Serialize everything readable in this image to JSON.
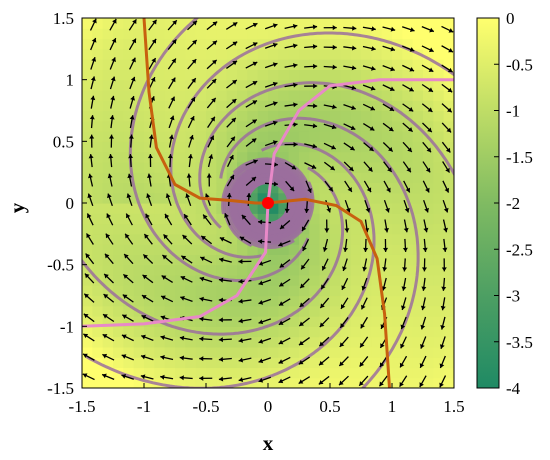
{
  "chart_data": {
    "type": "streamplot",
    "xlabel": "x",
    "ylabel": "y",
    "xlim": [
      -1.5,
      1.5
    ],
    "ylim": [
      -1.5,
      1.5
    ],
    "xticks": [
      -1.5,
      -1,
      -0.5,
      0,
      0.5,
      1,
      1.5
    ],
    "xtick_labels": [
      "-1.5",
      "-1",
      "-0.5",
      "0",
      "0.5",
      "1",
      "1.5"
    ],
    "yticks": [
      -1.5,
      -1,
      -0.5,
      0,
      0.5,
      1,
      1.5
    ],
    "ytick_labels": [
      "-1.5",
      "-1",
      "-0.5",
      "0",
      "0.5",
      "1",
      "1.5"
    ],
    "colorbar": {
      "range": [
        -4,
        0
      ],
      "ticks": [
        0,
        -0.5,
        -1,
        -1.5,
        -2,
        -2.5,
        -3,
        -3.5,
        -4
      ],
      "tick_labels": [
        "0",
        "-0.5",
        "-1",
        "-1.5",
        "-2",
        "-2.5",
        "-3",
        "-3.5",
        "-4"
      ],
      "colormap": "summer-like",
      "low_color": "#1f8a64",
      "high_color": "#ffff6e"
    },
    "equilibrium": {
      "x": 0,
      "y": 0,
      "color": "#ff0000"
    },
    "nullcline_orange": {
      "color": "#c8600f",
      "points": [
        [
          -1.0,
          1.5
        ],
        [
          -0.96,
          0.9
        ],
        [
          -0.9,
          0.45
        ],
        [
          -0.75,
          0.15
        ],
        [
          -0.55,
          0.04
        ],
        [
          -0.3,
          0.02
        ],
        [
          -0.1,
          0.0
        ],
        [
          0.0,
          0.0
        ],
        [
          0.1,
          0.01
        ],
        [
          0.3,
          0.03
        ],
        [
          0.55,
          -0.02
        ],
        [
          0.75,
          -0.15
        ],
        [
          0.88,
          -0.45
        ],
        [
          0.94,
          -0.9
        ],
        [
          0.98,
          -1.5
        ]
      ]
    },
    "nullcline_pink": {
      "color": "#e889c8",
      "points": [
        [
          1.5,
          1.0
        ],
        [
          0.9,
          1.0
        ],
        [
          0.5,
          0.95
        ],
        [
          0.25,
          0.75
        ],
        [
          0.05,
          0.4
        ],
        [
          0.0,
          0.0
        ],
        [
          -0.02,
          -0.4
        ],
        [
          -0.25,
          -0.75
        ],
        [
          -0.55,
          -0.92
        ],
        [
          -1.0,
          -0.98
        ],
        [
          -1.5,
          -1.0
        ]
      ]
    },
    "streamline_color": "#9b6f9e",
    "arrow_color": "#000000"
  }
}
